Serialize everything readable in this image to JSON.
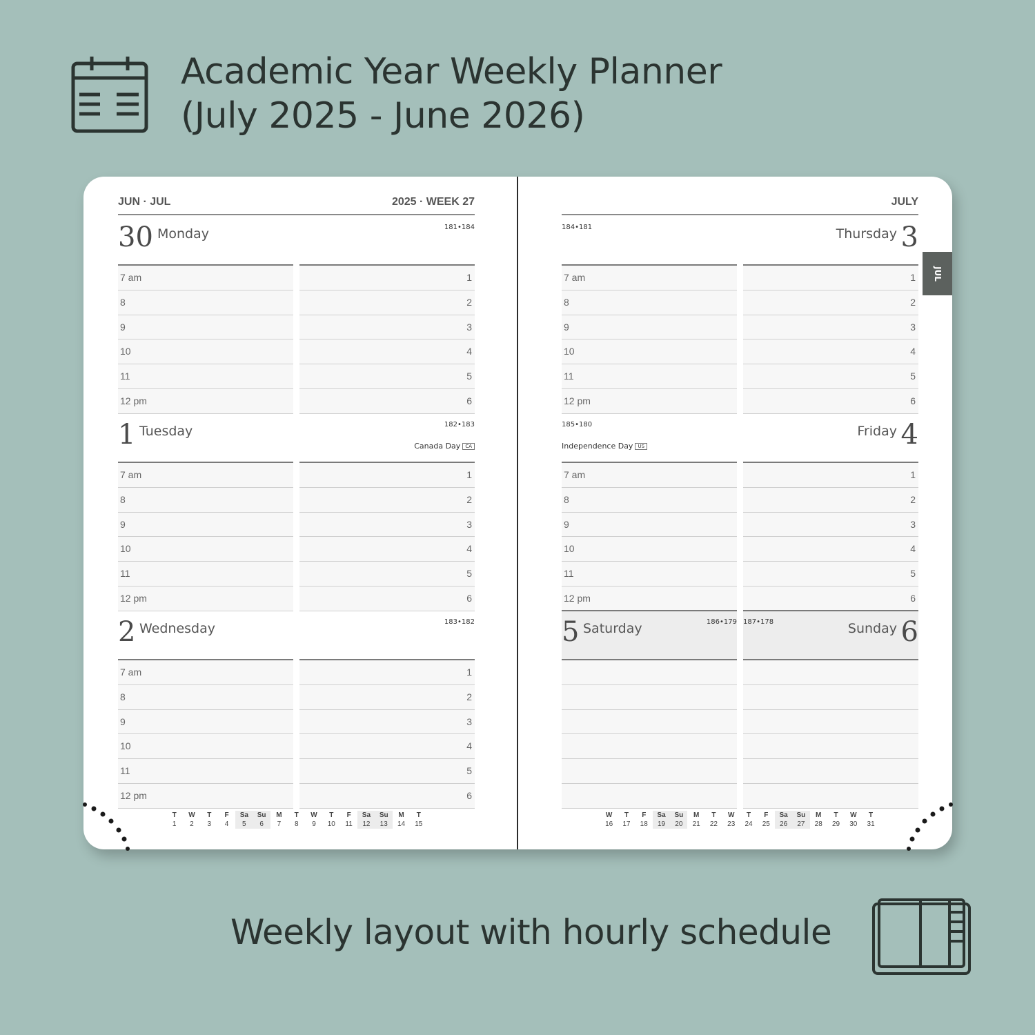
{
  "header": {
    "title_line1": "Academic Year Weekly Planner",
    "title_line2": "(July 2025 - June 2026)",
    "icon": "calendar-icon"
  },
  "tagline": "Weekly layout with hourly schedule",
  "tagline_icon": "planner-book-icon",
  "hours": [
    "7 am",
    "8",
    "9",
    "10",
    "11",
    "12 pm"
  ],
  "slots": [
    "1",
    "2",
    "3",
    "4",
    "5",
    "6"
  ],
  "left_page": {
    "header_left": "JUN · JUL",
    "header_right": "2025 · WEEK 27",
    "days": [
      {
        "num": "30",
        "name": "Monday",
        "count": "181•184"
      },
      {
        "num": "1",
        "name": "Tuesday",
        "count": "182•183",
        "holiday": "Canada Day",
        "badge": "CA"
      },
      {
        "num": "2",
        "name": "Wednesday",
        "count": "183•182"
      }
    ],
    "mini_calendar": [
      [
        "T",
        "1"
      ],
      [
        "W",
        "2"
      ],
      [
        "T",
        "3"
      ],
      [
        "F",
        "4"
      ],
      [
        "Sa",
        "5"
      ],
      [
        "Su",
        "6"
      ],
      [
        "M",
        "7"
      ],
      [
        "T",
        "8"
      ],
      [
        "W",
        "9"
      ],
      [
        "T",
        "10"
      ],
      [
        "F",
        "11"
      ],
      [
        "Sa",
        "12"
      ],
      [
        "Su",
        "13"
      ],
      [
        "M",
        "14"
      ],
      [
        "T",
        "15"
      ]
    ]
  },
  "right_page": {
    "header_right": "JULY",
    "month_tab": "JUL",
    "days": [
      {
        "num": "3",
        "name": "Thursday",
        "count": "184•181"
      },
      {
        "num": "4",
        "name": "Friday",
        "count": "185•180",
        "holiday": "Independence Day",
        "badge": "US"
      }
    ],
    "weekend": [
      {
        "num": "5",
        "name": "Saturday",
        "count": "186•179"
      },
      {
        "num": "6",
        "name": "Sunday",
        "count": "187•178"
      }
    ],
    "mini_calendar": [
      [
        "W",
        "16"
      ],
      [
        "T",
        "17"
      ],
      [
        "F",
        "18"
      ],
      [
        "Sa",
        "19"
      ],
      [
        "Su",
        "20"
      ],
      [
        "M",
        "21"
      ],
      [
        "T",
        "22"
      ],
      [
        "W",
        "23"
      ],
      [
        "T",
        "24"
      ],
      [
        "F",
        "25"
      ],
      [
        "Sa",
        "26"
      ],
      [
        "Su",
        "27"
      ],
      [
        "M",
        "28"
      ],
      [
        "T",
        "29"
      ],
      [
        "W",
        "30"
      ],
      [
        "T",
        "31"
      ]
    ]
  },
  "colors": {
    "background": "#a4bfba",
    "tab": "#5c615e",
    "text": "#2b3431"
  }
}
